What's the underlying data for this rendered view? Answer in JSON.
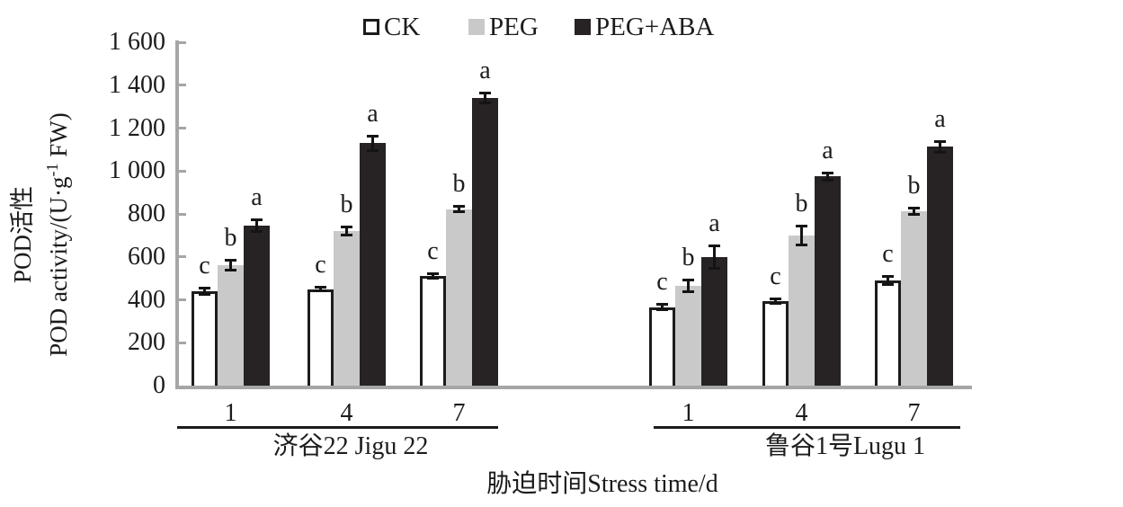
{
  "legend": {
    "items": [
      {
        "label": "CK",
        "swatch": "white-outlined"
      },
      {
        "label": "PEG",
        "swatch": "gray"
      },
      {
        "label": "PEG+ABA",
        "swatch": "black"
      }
    ]
  },
  "y_axis": {
    "title_line1": "POD活性",
    "title_line2_prefix": "POD activity/(U·g",
    "title_line2_sup": "-1",
    "title_line2_suffix": " FW)",
    "ticks": [
      "0",
      "200",
      "400",
      "600",
      "800",
      "1 000",
      "1 200",
      "1 400",
      "1 600"
    ]
  },
  "x_axis": {
    "title": "胁迫时间Stress time/d",
    "day_ticks": [
      "1",
      "4",
      "7"
    ],
    "cultivars": [
      {
        "label": "济谷22 Jigu 22"
      },
      {
        "label": "鲁谷1号Lugu 1"
      }
    ]
  },
  "colors": {
    "ck_fill": "#ffffff",
    "ck_border": "#1c1c1c",
    "peg_fill": "#c9c9c9",
    "peg_aba_fill": "#272324",
    "axis_line": "#a6a6a6",
    "text": "#1c1c1c"
  },
  "chart_data": {
    "type": "bar",
    "title": "",
    "xlabel": "胁迫时间Stress time/d",
    "ylabel": "POD活性 POD activity/(U·g⁻¹ FW)",
    "ylim": [
      0,
      1600
    ],
    "ytick_interval": 200,
    "grid": false,
    "legend_position": "top",
    "error_bars": true,
    "significance_letters": true,
    "series_names": [
      "CK",
      "PEG",
      "PEG+ABA"
    ],
    "groups": [
      {
        "cultivar": "济谷22 Jigu 22",
        "day": "1",
        "bars": [
          {
            "series": "CK",
            "value": 440,
            "error": 15,
            "letter": "c"
          },
          {
            "series": "PEG",
            "value": 560,
            "error": 25,
            "letter": "b"
          },
          {
            "series": "PEG+ABA",
            "value": 745,
            "error": 30,
            "letter": "a"
          }
        ]
      },
      {
        "cultivar": "济谷22 Jigu 22",
        "day": "4",
        "bars": [
          {
            "series": "CK",
            "value": 450,
            "error": 12,
            "letter": "c"
          },
          {
            "series": "PEG",
            "value": 720,
            "error": 20,
            "letter": "b"
          },
          {
            "series": "PEG+ABA",
            "value": 1130,
            "error": 35,
            "letter": "a"
          }
        ]
      },
      {
        "cultivar": "济谷22 Jigu 22",
        "day": "7",
        "bars": [
          {
            "series": "CK",
            "value": 512,
            "error": 12,
            "letter": "c"
          },
          {
            "series": "PEG",
            "value": 822,
            "error": 15,
            "letter": "b"
          },
          {
            "series": "PEG+ABA",
            "value": 1340,
            "error": 25,
            "letter": "a"
          }
        ]
      },
      {
        "cultivar": "鲁谷1号Lugu 1",
        "day": "1",
        "bars": [
          {
            "series": "CK",
            "value": 365,
            "error": 15,
            "letter": "c"
          },
          {
            "series": "PEG",
            "value": 465,
            "error": 30,
            "letter": "b"
          },
          {
            "series": "PEG+ABA",
            "value": 600,
            "error": 55,
            "letter": "a"
          }
        ]
      },
      {
        "cultivar": "鲁谷1号Lugu 1",
        "day": "4",
        "bars": [
          {
            "series": "CK",
            "value": 393,
            "error": 12,
            "letter": "c"
          },
          {
            "series": "PEG",
            "value": 700,
            "error": 45,
            "letter": "b"
          },
          {
            "series": "PEG+ABA",
            "value": 975,
            "error": 18,
            "letter": "a"
          }
        ]
      },
      {
        "cultivar": "鲁谷1号Lugu 1",
        "day": "7",
        "bars": [
          {
            "series": "CK",
            "value": 490,
            "error": 20,
            "letter": "c"
          },
          {
            "series": "PEG",
            "value": 812,
            "error": 18,
            "letter": "b"
          },
          {
            "series": "PEG+ABA",
            "value": 1113,
            "error": 28,
            "letter": "a"
          }
        ]
      }
    ]
  }
}
